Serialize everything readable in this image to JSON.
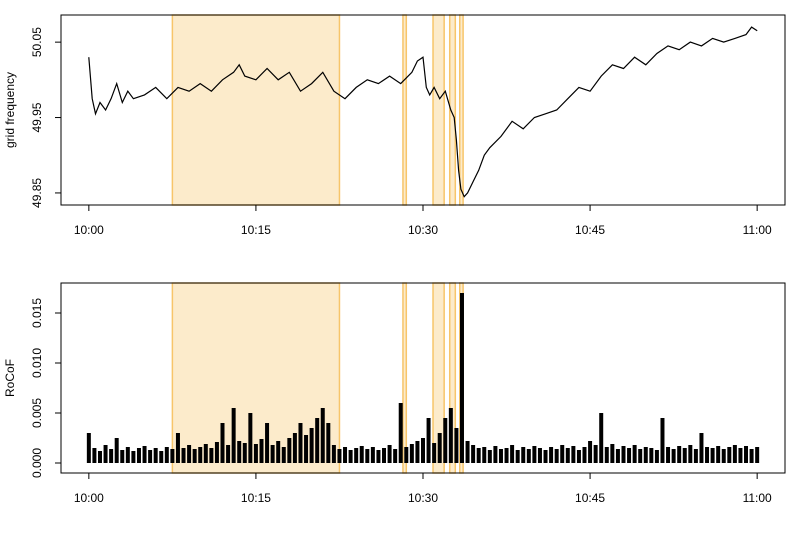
{
  "chart_data": [
    {
      "type": "line",
      "ylabel": "grid frequency",
      "color": "#000000",
      "highlight_color": "#f7c56a",
      "highlights": [
        [
          7.5,
          22.5
        ],
        [
          28.2,
          28.5
        ],
        [
          30.9,
          31.9
        ],
        [
          32.4,
          32.9
        ],
        [
          33.3,
          33.6
        ]
      ],
      "xlim": [
        -2.5,
        62.5
      ],
      "ylim": [
        49.834,
        50.086
      ],
      "xticks": [
        {
          "value": 0,
          "label": "10:00"
        },
        {
          "value": 15,
          "label": "10:15"
        },
        {
          "value": 30,
          "label": "10:30"
        },
        {
          "value": 45,
          "label": "10:45"
        },
        {
          "value": 60,
          "label": "11:00"
        }
      ],
      "yticks": [
        49.85,
        49.95,
        50.05
      ],
      "x": [
        0,
        0.3,
        0.6,
        1,
        1.5,
        2,
        2.5,
        3,
        3.5,
        4,
        5,
        6,
        7,
        8,
        9,
        10,
        11,
        12,
        13,
        13.5,
        14,
        15,
        16,
        17,
        18,
        19,
        20,
        21,
        22,
        23,
        24,
        25,
        26,
        27,
        28,
        29,
        29.5,
        30,
        30.3,
        30.6,
        31,
        31.5,
        32,
        32.5,
        32.8,
        33,
        33.2,
        33.4,
        33.7,
        34,
        34.5,
        35,
        35.5,
        36,
        37,
        38,
        39,
        40,
        41,
        42,
        43,
        44,
        45,
        46,
        47,
        48,
        49,
        50,
        51,
        52,
        53,
        54,
        55,
        56,
        57,
        58,
        59,
        59.5,
        60
      ],
      "values": [
        50.03,
        49.975,
        49.955,
        49.97,
        49.96,
        49.975,
        49.995,
        49.97,
        49.985,
        49.975,
        49.98,
        49.99,
        49.975,
        49.99,
        49.985,
        49.995,
        49.985,
        50.0,
        50.01,
        50.02,
        50.005,
        50.0,
        50.015,
        50.0,
        50.01,
        49.985,
        49.995,
        50.01,
        49.985,
        49.975,
        49.99,
        50.0,
        49.995,
        50.005,
        49.995,
        50.01,
        50.025,
        50.03,
        49.99,
        49.98,
        49.99,
        49.975,
        49.985,
        49.96,
        49.95,
        49.92,
        49.88,
        49.855,
        49.845,
        49.85,
        49.865,
        49.88,
        49.9,
        49.91,
        49.925,
        49.945,
        49.935,
        49.95,
        49.955,
        49.96,
        49.975,
        49.99,
        49.985,
        50.005,
        50.02,
        50.015,
        50.03,
        50.02,
        50.035,
        50.045,
        50.04,
        50.05,
        50.045,
        50.055,
        50.05,
        50.055,
        50.06,
        50.07,
        50.065
      ]
    },
    {
      "type": "spike",
      "ylabel": "RoCoF",
      "color": "#000000",
      "highlight_color": "#f7c56a",
      "highlights": [
        [
          7.5,
          22.5
        ],
        [
          28.2,
          28.5
        ],
        [
          30.9,
          31.9
        ],
        [
          32.4,
          32.9
        ],
        [
          33.3,
          33.6
        ]
      ],
      "xlim": [
        -2.5,
        62.5
      ],
      "ylim": [
        -0.001,
        0.018
      ],
      "xticks": [
        {
          "value": 0,
          "label": "10:00"
        },
        {
          "value": 15,
          "label": "10:15"
        },
        {
          "value": 30,
          "label": "10:30"
        },
        {
          "value": 45,
          "label": "10:45"
        },
        {
          "value": 60,
          "label": "11:00"
        }
      ],
      "yticks": [
        {
          "value": 0,
          "label": "0.000"
        },
        0.005,
        {
          "value": 0.01,
          "label": "0.010"
        },
        0.015
      ],
      "x": [
        0,
        0.5,
        1,
        1.5,
        2,
        2.5,
        3,
        3.5,
        4,
        4.5,
        5,
        5.5,
        6,
        6.5,
        7,
        7.5,
        8,
        8.5,
        9,
        9.5,
        10,
        10.5,
        11,
        11.5,
        12,
        12.5,
        13,
        13.5,
        14,
        14.5,
        15,
        15.5,
        16,
        16.5,
        17,
        17.5,
        18,
        18.5,
        19,
        19.5,
        20,
        20.5,
        21,
        21.5,
        22,
        22.5,
        23,
        23.5,
        24,
        24.5,
        25,
        25.5,
        26,
        26.5,
        27,
        27.5,
        28,
        28.5,
        29,
        29.5,
        30,
        30.5,
        31,
        31.5,
        32,
        32.5,
        33,
        33.5,
        34,
        34.5,
        35,
        35.5,
        36,
        36.5,
        37,
        37.5,
        38,
        38.5,
        39,
        39.5,
        40,
        40.5,
        41,
        41.5,
        42,
        42.5,
        43,
        43.5,
        44,
        44.5,
        45,
        45.5,
        46,
        46.5,
        47,
        47.5,
        48,
        48.5,
        49,
        49.5,
        50,
        50.5,
        51,
        51.5,
        52,
        52.5,
        53,
        53.5,
        54,
        54.5,
        55,
        55.5,
        56,
        56.5,
        57,
        57.5,
        58,
        58.5,
        59,
        59.5,
        60
      ],
      "values": [
        0.003,
        0.0015,
        0.0012,
        0.0018,
        0.0014,
        0.0025,
        0.0013,
        0.0016,
        0.0012,
        0.0015,
        0.0017,
        0.0013,
        0.0015,
        0.0012,
        0.0016,
        0.0014,
        0.003,
        0.0015,
        0.0018,
        0.0014,
        0.0016,
        0.0019,
        0.0015,
        0.0021,
        0.004,
        0.0018,
        0.0055,
        0.0022,
        0.002,
        0.005,
        0.0019,
        0.0024,
        0.004,
        0.0018,
        0.0022,
        0.0016,
        0.0025,
        0.003,
        0.004,
        0.0028,
        0.0035,
        0.0045,
        0.0055,
        0.004,
        0.0018,
        0.0014,
        0.0016,
        0.0013,
        0.0015,
        0.0017,
        0.0014,
        0.0016,
        0.0013,
        0.0015,
        0.0018,
        0.0014,
        0.006,
        0.0016,
        0.0019,
        0.0022,
        0.0025,
        0.0045,
        0.002,
        0.003,
        0.0045,
        0.0055,
        0.0035,
        0.017,
        0.0022,
        0.0018,
        0.0015,
        0.0016,
        0.0013,
        0.0017,
        0.0014,
        0.0015,
        0.0018,
        0.0013,
        0.0016,
        0.0014,
        0.0017,
        0.0015,
        0.0013,
        0.0016,
        0.0014,
        0.0018,
        0.0015,
        0.0017,
        0.0013,
        0.0016,
        0.0022,
        0.0018,
        0.005,
        0.0016,
        0.0019,
        0.0014,
        0.0017,
        0.0015,
        0.0018,
        0.0014,
        0.0016,
        0.0015,
        0.0013,
        0.0045,
        0.0016,
        0.0014,
        0.0017,
        0.0015,
        0.0018,
        0.0014,
        0.003,
        0.0016,
        0.0015,
        0.0017,
        0.0014,
        0.0016,
        0.0018,
        0.0015,
        0.0017,
        0.0014,
        0.0016
      ]
    }
  ]
}
